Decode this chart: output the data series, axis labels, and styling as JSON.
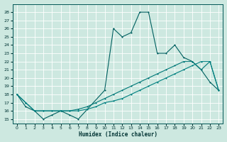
{
  "xlabel": "Humidex (Indice chaleur)",
  "bg_color": "#cde8e0",
  "grid_color": "#b0d8cc",
  "line_color1": "#006060",
  "line_color2": "#007878",
  "line_color3": "#008080",
  "ylim": [
    14.5,
    29
  ],
  "xlim": [
    -0.5,
    23.5
  ],
  "yticks": [
    15,
    16,
    17,
    18,
    19,
    20,
    21,
    22,
    23,
    24,
    25,
    26,
    27,
    28
  ],
  "xticks": [
    0,
    1,
    2,
    3,
    4,
    5,
    6,
    7,
    8,
    9,
    10,
    11,
    12,
    13,
    14,
    15,
    16,
    17,
    18,
    19,
    20,
    21,
    22,
    23
  ],
  "line1_x": [
    0,
    1,
    2,
    3,
    4,
    5,
    6,
    7,
    10,
    11,
    12,
    13,
    14,
    15,
    16,
    17,
    18,
    19,
    20,
    21,
    22,
    23
  ],
  "line1_y": [
    18,
    16.5,
    16,
    15,
    15.5,
    16,
    15.5,
    15,
    18.5,
    26,
    25,
    25.5,
    28,
    28,
    23,
    23,
    24,
    22.5,
    22,
    21,
    19.5,
    18.5
  ],
  "line2_x": [
    0,
    1,
    2,
    3,
    4,
    5,
    6,
    7,
    8,
    9,
    10,
    11,
    12,
    13,
    14,
    15,
    16,
    17,
    18,
    19,
    20,
    21,
    22,
    23
  ],
  "line2_y": [
    18,
    17,
    16,
    16,
    16,
    16,
    16,
    16.2,
    16.5,
    17,
    17.5,
    18,
    18.5,
    19,
    19.5,
    20,
    20.5,
    21,
    21.5,
    22,
    22,
    21,
    22,
    18.5
  ],
  "line3_x": [
    0,
    1,
    2,
    3,
    4,
    5,
    6,
    7,
    8,
    9,
    10,
    11,
    12,
    13,
    14,
    15,
    16,
    17,
    18,
    19,
    20,
    21,
    22,
    23
  ],
  "line3_y": [
    18,
    17,
    16,
    16,
    16,
    16,
    16,
    16,
    16.2,
    16.5,
    17,
    17.2,
    17.5,
    18,
    18.5,
    19,
    19.5,
    20,
    20.5,
    21,
    21.5,
    22,
    22,
    18.5
  ]
}
